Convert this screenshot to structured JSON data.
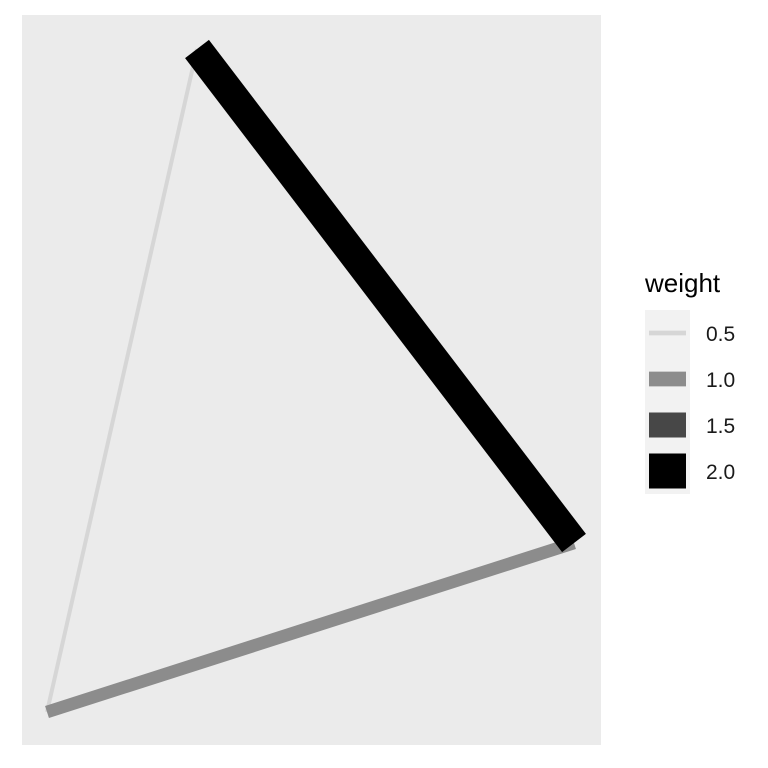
{
  "panel": {
    "background": "#EBEBEB"
  },
  "network": {
    "nodes": [
      {
        "id": "top"
      },
      {
        "id": "right"
      },
      {
        "id": "bottom-left"
      }
    ],
    "edges": [
      {
        "from": "top",
        "to": "right",
        "weight": 2.0
      },
      {
        "from": "right",
        "to": "bottom-left",
        "weight": 1.0
      },
      {
        "from": "bottom-left",
        "to": "top",
        "weight": 0.5
      }
    ]
  },
  "legend": {
    "title": "weight",
    "background": "#F2F2F2",
    "items": [
      {
        "label": "0.5",
        "weight": 0.5,
        "color": "#D6D6D6"
      },
      {
        "label": "1.0",
        "weight": 1.0,
        "color": "#8C8C8C"
      },
      {
        "label": "1.5",
        "weight": 1.5,
        "color": "#474747"
      },
      {
        "label": "2.0",
        "weight": 2.0,
        "color": "#000000"
      }
    ]
  }
}
